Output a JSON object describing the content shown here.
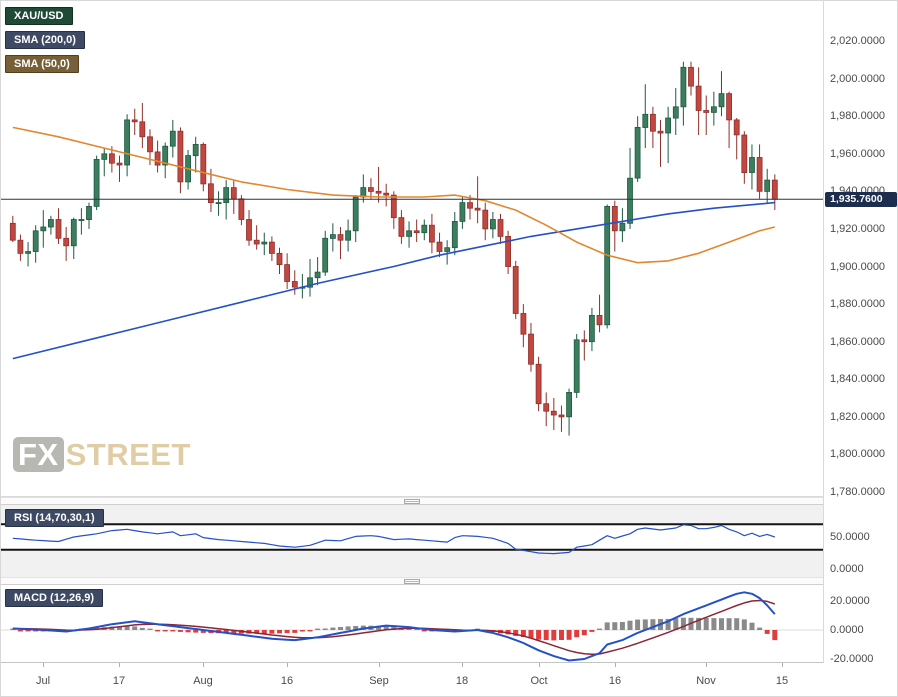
{
  "legend": {
    "symbol": "XAU/USD",
    "sma200": "SMA (200,0)",
    "sma50": "SMA (50,0)"
  },
  "panel_labels": {
    "rsi": "RSI (14,70,30,1)",
    "macd": "MACD (12,26,9)"
  },
  "price_badge": "1,935.7600",
  "watermark": {
    "fx": "FX",
    "street": "STREET"
  },
  "chart_data": {
    "type": "candlestick",
    "symbol": "XAU/USD",
    "last_price": 1935.76,
    "price_axis": {
      "min": 1780,
      "max": 2020,
      "tick_step": 20
    },
    "x_ticks": [
      {
        "label": "Jul",
        "i": 4
      },
      {
        "label": "17",
        "i": 14
      },
      {
        "label": "Aug",
        "i": 25
      },
      {
        "label": "16",
        "i": 36
      },
      {
        "label": "Sep",
        "i": 48
      },
      {
        "label": "18",
        "i": 59
      },
      {
        "label": "Oct",
        "i": 69
      },
      {
        "label": "16",
        "i": 79
      },
      {
        "label": "Nov",
        "i": 91
      },
      {
        "label": "15",
        "i": 101
      }
    ],
    "colors": {
      "candle_up": "#3c7d5e",
      "candle_up_border": "#1e5941",
      "candle_down": "#c14741",
      "candle_down_border": "#8f2f2b",
      "sma200": "#2451c8",
      "sma50": "#e0882e",
      "price_line": "#26334d",
      "rsi_line": "#2451c8",
      "rsi_band": "#141414",
      "macd_line": "#2451c8",
      "macd_signal": "#8b2635",
      "hist_pos": "#8a8a8a",
      "hist_neg": "#e23b3b"
    },
    "candles": [
      [
        1923,
        1927,
        1913,
        1914
      ],
      [
        1914,
        1917,
        1903,
        1907
      ],
      [
        1907,
        1913,
        1900,
        1908
      ],
      [
        1908,
        1922,
        1902,
        1919
      ],
      [
        1919,
        1930,
        1910,
        1921
      ],
      [
        1921,
        1927,
        1917,
        1925
      ],
      [
        1925,
        1931,
        1912,
        1915
      ],
      [
        1915,
        1921,
        1903,
        1911
      ],
      [
        1911,
        1926,
        1904,
        1925
      ],
      [
        1925,
        1931,
        1917,
        1925
      ],
      [
        1925,
        1934,
        1920,
        1932
      ],
      [
        1932,
        1959,
        1930,
        1957
      ],
      [
        1957,
        1963,
        1948,
        1960
      ],
      [
        1960,
        1964,
        1950,
        1955
      ],
      [
        1955,
        1959,
        1945,
        1954
      ],
      [
        1954,
        1981,
        1948,
        1978
      ],
      [
        1978,
        1984,
        1970,
        1977
      ],
      [
        1977,
        1987,
        1963,
        1969
      ],
      [
        1969,
        1973,
        1954,
        1961
      ],
      [
        1961,
        1967,
        1950,
        1954
      ],
      [
        1954,
        1966,
        1947,
        1964
      ],
      [
        1964,
        1978,
        1958,
        1972
      ],
      [
        1972,
        1974,
        1939,
        1945
      ],
      [
        1945,
        1962,
        1941,
        1959
      ],
      [
        1959,
        1969,
        1950,
        1965
      ],
      [
        1965,
        1966,
        1940,
        1944
      ],
      [
        1944,
        1952,
        1929,
        1934
      ],
      [
        1934,
        1940,
        1927,
        1934
      ],
      [
        1934,
        1946,
        1925,
        1942
      ],
      [
        1942,
        1946,
        1928,
        1936
      ],
      [
        1936,
        1938,
        1922,
        1925
      ],
      [
        1925,
        1930,
        1911,
        1914
      ],
      [
        1914,
        1922,
        1909,
        1912
      ],
      [
        1912,
        1918,
        1906,
        1913
      ],
      [
        1913,
        1916,
        1903,
        1907
      ],
      [
        1907,
        1910,
        1896,
        1901
      ],
      [
        1901,
        1907,
        1888,
        1892
      ],
      [
        1892,
        1898,
        1885,
        1889
      ],
      [
        1889,
        1896,
        1883,
        1889
      ],
      [
        1889,
        1904,
        1884,
        1894
      ],
      [
        1894,
        1905,
        1890,
        1897
      ],
      [
        1897,
        1919,
        1895,
        1915
      ],
      [
        1915,
        1923,
        1908,
        1917
      ],
      [
        1917,
        1921,
        1904,
        1914
      ],
      [
        1914,
        1925,
        1908,
        1919
      ],
      [
        1919,
        1938,
        1913,
        1937
      ],
      [
        1937,
        1949,
        1934,
        1942
      ],
      [
        1942,
        1947,
        1936,
        1940
      ],
      [
        1940,
        1953,
        1934,
        1939
      ],
      [
        1939,
        1944,
        1932,
        1938
      ],
      [
        1938,
        1940,
        1920,
        1926
      ],
      [
        1926,
        1930,
        1912,
        1916
      ],
      [
        1916,
        1924,
        1910,
        1919
      ],
      [
        1919,
        1925,
        1913,
        1918
      ],
      [
        1918,
        1925,
        1914,
        1922
      ],
      [
        1922,
        1928,
        1907,
        1913
      ],
      [
        1913,
        1918,
        1905,
        1908
      ],
      [
        1908,
        1914,
        1901,
        1910
      ],
      [
        1910,
        1929,
        1906,
        1924
      ],
      [
        1924,
        1937,
        1920,
        1934
      ],
      [
        1934,
        1938,
        1925,
        1931
      ],
      [
        1931,
        1948,
        1923,
        1930
      ],
      [
        1930,
        1934,
        1914,
        1920
      ],
      [
        1920,
        1929,
        1915,
        1925
      ],
      [
        1925,
        1928,
        1912,
        1916
      ],
      [
        1916,
        1919,
        1896,
        1900
      ],
      [
        1900,
        1903,
        1872,
        1875
      ],
      [
        1875,
        1880,
        1857,
        1864
      ],
      [
        1864,
        1870,
        1844,
        1848
      ],
      [
        1848,
        1852,
        1823,
        1827
      ],
      [
        1827,
        1833,
        1815,
        1823
      ],
      [
        1823,
        1830,
        1813,
        1821
      ],
      [
        1821,
        1826,
        1812,
        1820
      ],
      [
        1820,
        1835,
        1810,
        1833
      ],
      [
        1833,
        1864,
        1830,
        1861
      ],
      [
        1861,
        1866,
        1850,
        1860
      ],
      [
        1860,
        1878,
        1855,
        1874
      ],
      [
        1874,
        1885,
        1865,
        1869
      ],
      [
        1869,
        1933,
        1867,
        1932
      ],
      [
        1932,
        1935,
        1908,
        1919
      ],
      [
        1919,
        1931,
        1913,
        1923
      ],
      [
        1923,
        1963,
        1920,
        1947
      ],
      [
        1947,
        1980,
        1945,
        1974
      ],
      [
        1974,
        1997,
        1963,
        1981
      ],
      [
        1981,
        1985,
        1963,
        1972
      ],
      [
        1972,
        1978,
        1953,
        1971
      ],
      [
        1971,
        1985,
        1955,
        1979
      ],
      [
        1979,
        1995,
        1970,
        1985
      ],
      [
        1985,
        2009,
        1975,
        2006
      ],
      [
        2006,
        2009,
        1991,
        1996
      ],
      [
        1996,
        2006,
        1970,
        1983
      ],
      [
        1983,
        1991,
        1970,
        1982
      ],
      [
        1982,
        1993,
        1975,
        1985
      ],
      [
        1985,
        2004,
        1980,
        1992
      ],
      [
        1992,
        1993,
        1963,
        1978
      ],
      [
        1978,
        1979,
        1957,
        1970
      ],
      [
        1970,
        1972,
        1944,
        1950
      ],
      [
        1950,
        1965,
        1941,
        1958
      ],
      [
        1958,
        1965,
        1936,
        1940
      ],
      [
        1940,
        1952,
        1934,
        1946
      ],
      [
        1946,
        1949,
        1930,
        1935.76
      ]
    ],
    "overlays": {
      "sma200": {
        "points": [
          [
            0,
            1851
          ],
          [
            10,
            1861
          ],
          [
            20,
            1871
          ],
          [
            30,
            1881
          ],
          [
            40,
            1891
          ],
          [
            50,
            1900
          ],
          [
            56,
            1906
          ],
          [
            62,
            1911
          ],
          [
            68,
            1916
          ],
          [
            74,
            1920
          ],
          [
            80,
            1924
          ],
          [
            86,
            1928
          ],
          [
            92,
            1931
          ],
          [
            100,
            1934
          ]
        ]
      },
      "sma50": {
        "points": [
          [
            0,
            1974
          ],
          [
            6,
            1969
          ],
          [
            12,
            1963
          ],
          [
            18,
            1957
          ],
          [
            24,
            1951
          ],
          [
            30,
            1945
          ],
          [
            36,
            1941
          ],
          [
            42,
            1938
          ],
          [
            48,
            1937
          ],
          [
            54,
            1937
          ],
          [
            58,
            1938
          ],
          [
            62,
            1935
          ],
          [
            66,
            1930
          ],
          [
            70,
            1922
          ],
          [
            74,
            1913
          ],
          [
            78,
            1906
          ],
          [
            82,
            1902
          ],
          [
            86,
            1903
          ],
          [
            90,
            1907
          ],
          [
            94,
            1913
          ],
          [
            98,
            1919
          ],
          [
            100,
            1921
          ]
        ]
      }
    },
    "rsi": {
      "levels": [
        70,
        30
      ],
      "axis_ticks": [
        50,
        0
      ],
      "points": [
        [
          0,
          48
        ],
        [
          3,
          45
        ],
        [
          6,
          43
        ],
        [
          8,
          50
        ],
        [
          11,
          55
        ],
        [
          13,
          60
        ],
        [
          15,
          62
        ],
        [
          17,
          58
        ],
        [
          19,
          55
        ],
        [
          21,
          58
        ],
        [
          22,
          52
        ],
        [
          24,
          55
        ],
        [
          25,
          49
        ],
        [
          27,
          46
        ],
        [
          30,
          43
        ],
        [
          33,
          40
        ],
        [
          35,
          36
        ],
        [
          37,
          34
        ],
        [
          39,
          37
        ],
        [
          41,
          45
        ],
        [
          43,
          44
        ],
        [
          45,
          51
        ],
        [
          47,
          52
        ],
        [
          48,
          51
        ],
        [
          50,
          46
        ],
        [
          52,
          47
        ],
        [
          55,
          44
        ],
        [
          57,
          42
        ],
        [
          58,
          49
        ],
        [
          59,
          52
        ],
        [
          61,
          51
        ],
        [
          63,
          48
        ],
        [
          65,
          40
        ],
        [
          66,
          31
        ],
        [
          68,
          27
        ],
        [
          69,
          25
        ],
        [
          71,
          24
        ],
        [
          73,
          26
        ],
        [
          74,
          34
        ],
        [
          76,
          38
        ],
        [
          78,
          52
        ],
        [
          79,
          48
        ],
        [
          81,
          55
        ],
        [
          82,
          62
        ],
        [
          83,
          64
        ],
        [
          85,
          61
        ],
        [
          87,
          64
        ],
        [
          88,
          69
        ],
        [
          89,
          68
        ],
        [
          90,
          63
        ],
        [
          91,
          63
        ],
        [
          92,
          65
        ],
        [
          93,
          68
        ],
        [
          94,
          62
        ],
        [
          95,
          58
        ],
        [
          96,
          52
        ],
        [
          97,
          56
        ],
        [
          98,
          51
        ],
        [
          99,
          54
        ],
        [
          100,
          50
        ]
      ]
    },
    "macd": {
      "axis_ticks": [
        20,
        0,
        -20
      ],
      "signal_period": 9,
      "points": [
        [
          0,
          1
        ],
        [
          4,
          0
        ],
        [
          7,
          -1
        ],
        [
          10,
          1
        ],
        [
          13,
          4
        ],
        [
          16,
          6
        ],
        [
          19,
          4
        ],
        [
          22,
          2
        ],
        [
          25,
          0
        ],
        [
          28,
          -2
        ],
        [
          31,
          -4
        ],
        [
          34,
          -6
        ],
        [
          37,
          -7
        ],
        [
          40,
          -5
        ],
        [
          43,
          -2
        ],
        [
          46,
          1
        ],
        [
          49,
          3
        ],
        [
          52,
          2
        ],
        [
          55,
          0
        ],
        [
          58,
          -1
        ],
        [
          61,
          0
        ],
        [
          63,
          -2
        ],
        [
          65,
          -5
        ],
        [
          67,
          -9
        ],
        [
          69,
          -14
        ],
        [
          71,
          -18
        ],
        [
          73,
          -21
        ],
        [
          75,
          -20
        ],
        [
          77,
          -16
        ],
        [
          78,
          -10
        ],
        [
          80,
          -7
        ],
        [
          82,
          -2
        ],
        [
          84,
          2
        ],
        [
          86,
          6
        ],
        [
          88,
          11
        ],
        [
          90,
          15
        ],
        [
          92,
          19
        ],
        [
          94,
          23
        ],
        [
          95,
          25
        ],
        [
          96,
          26
        ],
        [
          97,
          25
        ],
        [
          98,
          22
        ],
        [
          99,
          17
        ],
        [
          100,
          11
        ]
      ]
    }
  }
}
